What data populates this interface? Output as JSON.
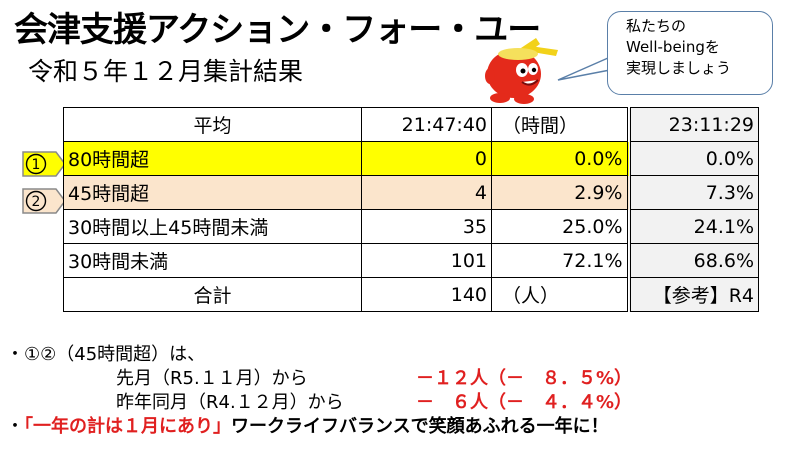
{
  "header": {
    "title": "会津支援アクション・フォー・ユー",
    "subtitle": "令和５年１２月集計結果"
  },
  "bubble": {
    "line1": "私たちの",
    "line2": "Well-beingを",
    "line3": "実現しましょう"
  },
  "table": {
    "header": {
      "label": "平均",
      "avg": "21:47:40",
      "unit": "（時間）",
      "ref": "23:11:29"
    },
    "rows": [
      {
        "marker": "①",
        "label": "80時間超",
        "count": "0",
        "pct": "0.0%",
        "ref": "0.0%"
      },
      {
        "marker": "②",
        "label": "45時間超",
        "count": "4",
        "pct": "2.9%",
        "ref": "7.3%"
      },
      {
        "label": "30時間以上45時間未満",
        "count": "35",
        "pct": "25.0%",
        "ref": "24.1%"
      },
      {
        "label": "30時間未満",
        "count": "101",
        "pct": "72.1%",
        "ref": "68.6%"
      }
    ],
    "footer": {
      "label": "合計",
      "count": "140",
      "unit": "（人）",
      "ref": "【参考】R4"
    }
  },
  "notes": {
    "line1": "・①②（45時間超）は、",
    "prev_month_label": "先月（R5.１１月）から",
    "prev_month_value": "－１２人（－　８．５%）",
    "prev_year_label": "昨年同月（R4.１２月）から",
    "prev_year_value": "－　６人（－　４．４%）",
    "bullet": "・",
    "slogan_red": "「一年の計は１月にあり」",
    "slogan_rest": "ワークライフバランスで笑顔あふれる一年に！"
  },
  "colors": {
    "highlight_yellow": "#ffff00",
    "highlight_beige": "#fbe5cc",
    "accent_red": "#e02020"
  }
}
